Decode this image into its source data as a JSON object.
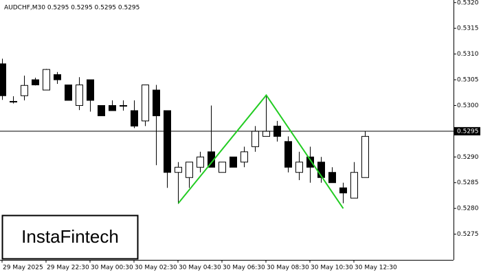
{
  "chart_data": {
    "type": "candlestick",
    "title": "AUDCHF,M30  0.5295 0.5295 0.5295 0.5295",
    "brand": "InstaFintech",
    "categories": [
      "29 May 2025",
      null,
      null,
      null,
      "29 May 22:30",
      null,
      null,
      null,
      "30 May 00:30",
      null,
      null,
      null,
      "30 May 02:30",
      null,
      null,
      null,
      "30 May 04:30",
      null,
      null,
      null,
      "30 May 06:30",
      null,
      null,
      null,
      "30 May 08:30",
      null,
      null,
      null,
      "30 May 10:30",
      null,
      null,
      null,
      "30 May 12:30",
      null
    ],
    "open": [
      0.53081,
      0.53008,
      0.53019,
      0.5305,
      0.5303,
      0.5306,
      0.5304,
      0.53,
      0.5305,
      0.53,
      0.53,
      0.53,
      0.5299,
      0.5297,
      0.5303,
      0.5299,
      0.5287,
      0.5286,
      0.5288,
      0.5291,
      0.5287,
      0.529,
      0.5289,
      0.5292,
      0.5294,
      0.5296,
      0.5293,
      0.5287,
      0.529,
      0.5289,
      0.5287,
      0.5284,
      0.5282,
      0.5286
    ],
    "high": [
      0.53091,
      0.53018,
      0.53058,
      0.53054,
      0.53071,
      0.53065,
      0.5304,
      0.53055,
      0.5305,
      0.53,
      0.5301,
      0.5301,
      0.5301,
      0.5304,
      0.5304,
      0.5299,
      0.5289,
      0.5289,
      0.5291,
      0.53,
      0.5289,
      0.529,
      0.5292,
      0.5296,
      0.5302,
      0.5297,
      0.5294,
      0.5291,
      0.5292,
      0.529,
      0.5288,
      0.5285,
      0.5289,
      0.5295
    ],
    "low": [
      0.53011,
      0.53004,
      0.5301,
      0.53039,
      0.5303,
      0.53042,
      0.5301,
      0.52991,
      0.52988,
      0.5298,
      0.5299,
      0.5299,
      0.52956,
      0.5296,
      0.52884,
      0.5284,
      0.52809,
      0.5284,
      0.5287,
      0.5288,
      0.5287,
      0.5288,
      0.5288,
      0.5291,
      0.5294,
      0.5293,
      0.5287,
      0.52855,
      0.5285,
      0.5285,
      0.5285,
      0.5281,
      0.5282,
      0.5286
    ],
    "close": [
      0.53019,
      0.53008,
      0.53039,
      0.5304,
      0.5307,
      0.5305,
      0.5301,
      0.5304,
      0.5301,
      0.5298,
      0.5299,
      0.53,
      0.5296,
      0.5304,
      0.5298,
      0.5287,
      0.5288,
      0.5289,
      0.529,
      0.5288,
      0.5289,
      0.5288,
      0.5291,
      0.5295,
      0.5295,
      0.5294,
      0.5288,
      0.5289,
      0.5288,
      0.5286,
      0.5285,
      0.5283,
      0.5287,
      0.5294
    ],
    "pattern": {
      "color": "#22cc22",
      "x": [
        16,
        24,
        31
      ],
      "values": [
        0.5281,
        0.5302,
        0.528
      ]
    },
    "price_line": 0.5295,
    "ylim": [
      0.527,
      0.53205
    ],
    "yticks": [
      0.5275,
      0.528,
      0.5285,
      0.529,
      0.5295,
      0.53,
      0.5305,
      0.531,
      0.5315,
      0.532
    ],
    "ytick_labels": [
      "0.5275",
      "0.5280",
      "0.5285",
      "0.5290",
      "0.5295",
      "0.5300",
      "0.5305",
      "0.5310",
      "0.5315",
      "0.5320"
    ]
  }
}
